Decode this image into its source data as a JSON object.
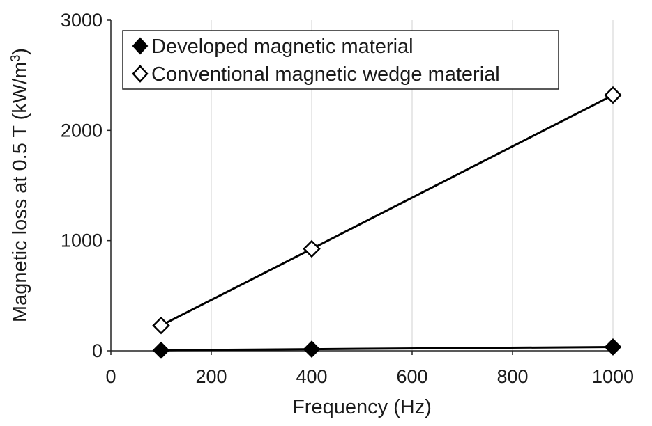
{
  "chart_data": {
    "type": "line",
    "xlabel": "Frequency (Hz)",
    "ylabel_main": "Magnetic loss at 0.5 T (kW/m",
    "ylabel_sup": "3",
    "ylabel_close": ")",
    "xlim": [
      0,
      1000
    ],
    "ylim": [
      0,
      3000
    ],
    "x_ticks": [
      0,
      200,
      400,
      600,
      800,
      1000
    ],
    "y_ticks": [
      0,
      1000,
      2000,
      3000
    ],
    "grid": "vertical",
    "legend_position": "top-left",
    "series": [
      {
        "name": "Developed magnetic material",
        "marker": "filled-diamond",
        "color": "#000000",
        "x": [
          100,
          400,
          1000
        ],
        "y": [
          5,
          15,
          35
        ]
      },
      {
        "name": "Conventional magnetic wedge material",
        "marker": "open-diamond",
        "color": "#000000",
        "x": [
          100,
          400,
          1000
        ],
        "y": [
          230,
          925,
          2320
        ]
      }
    ]
  }
}
